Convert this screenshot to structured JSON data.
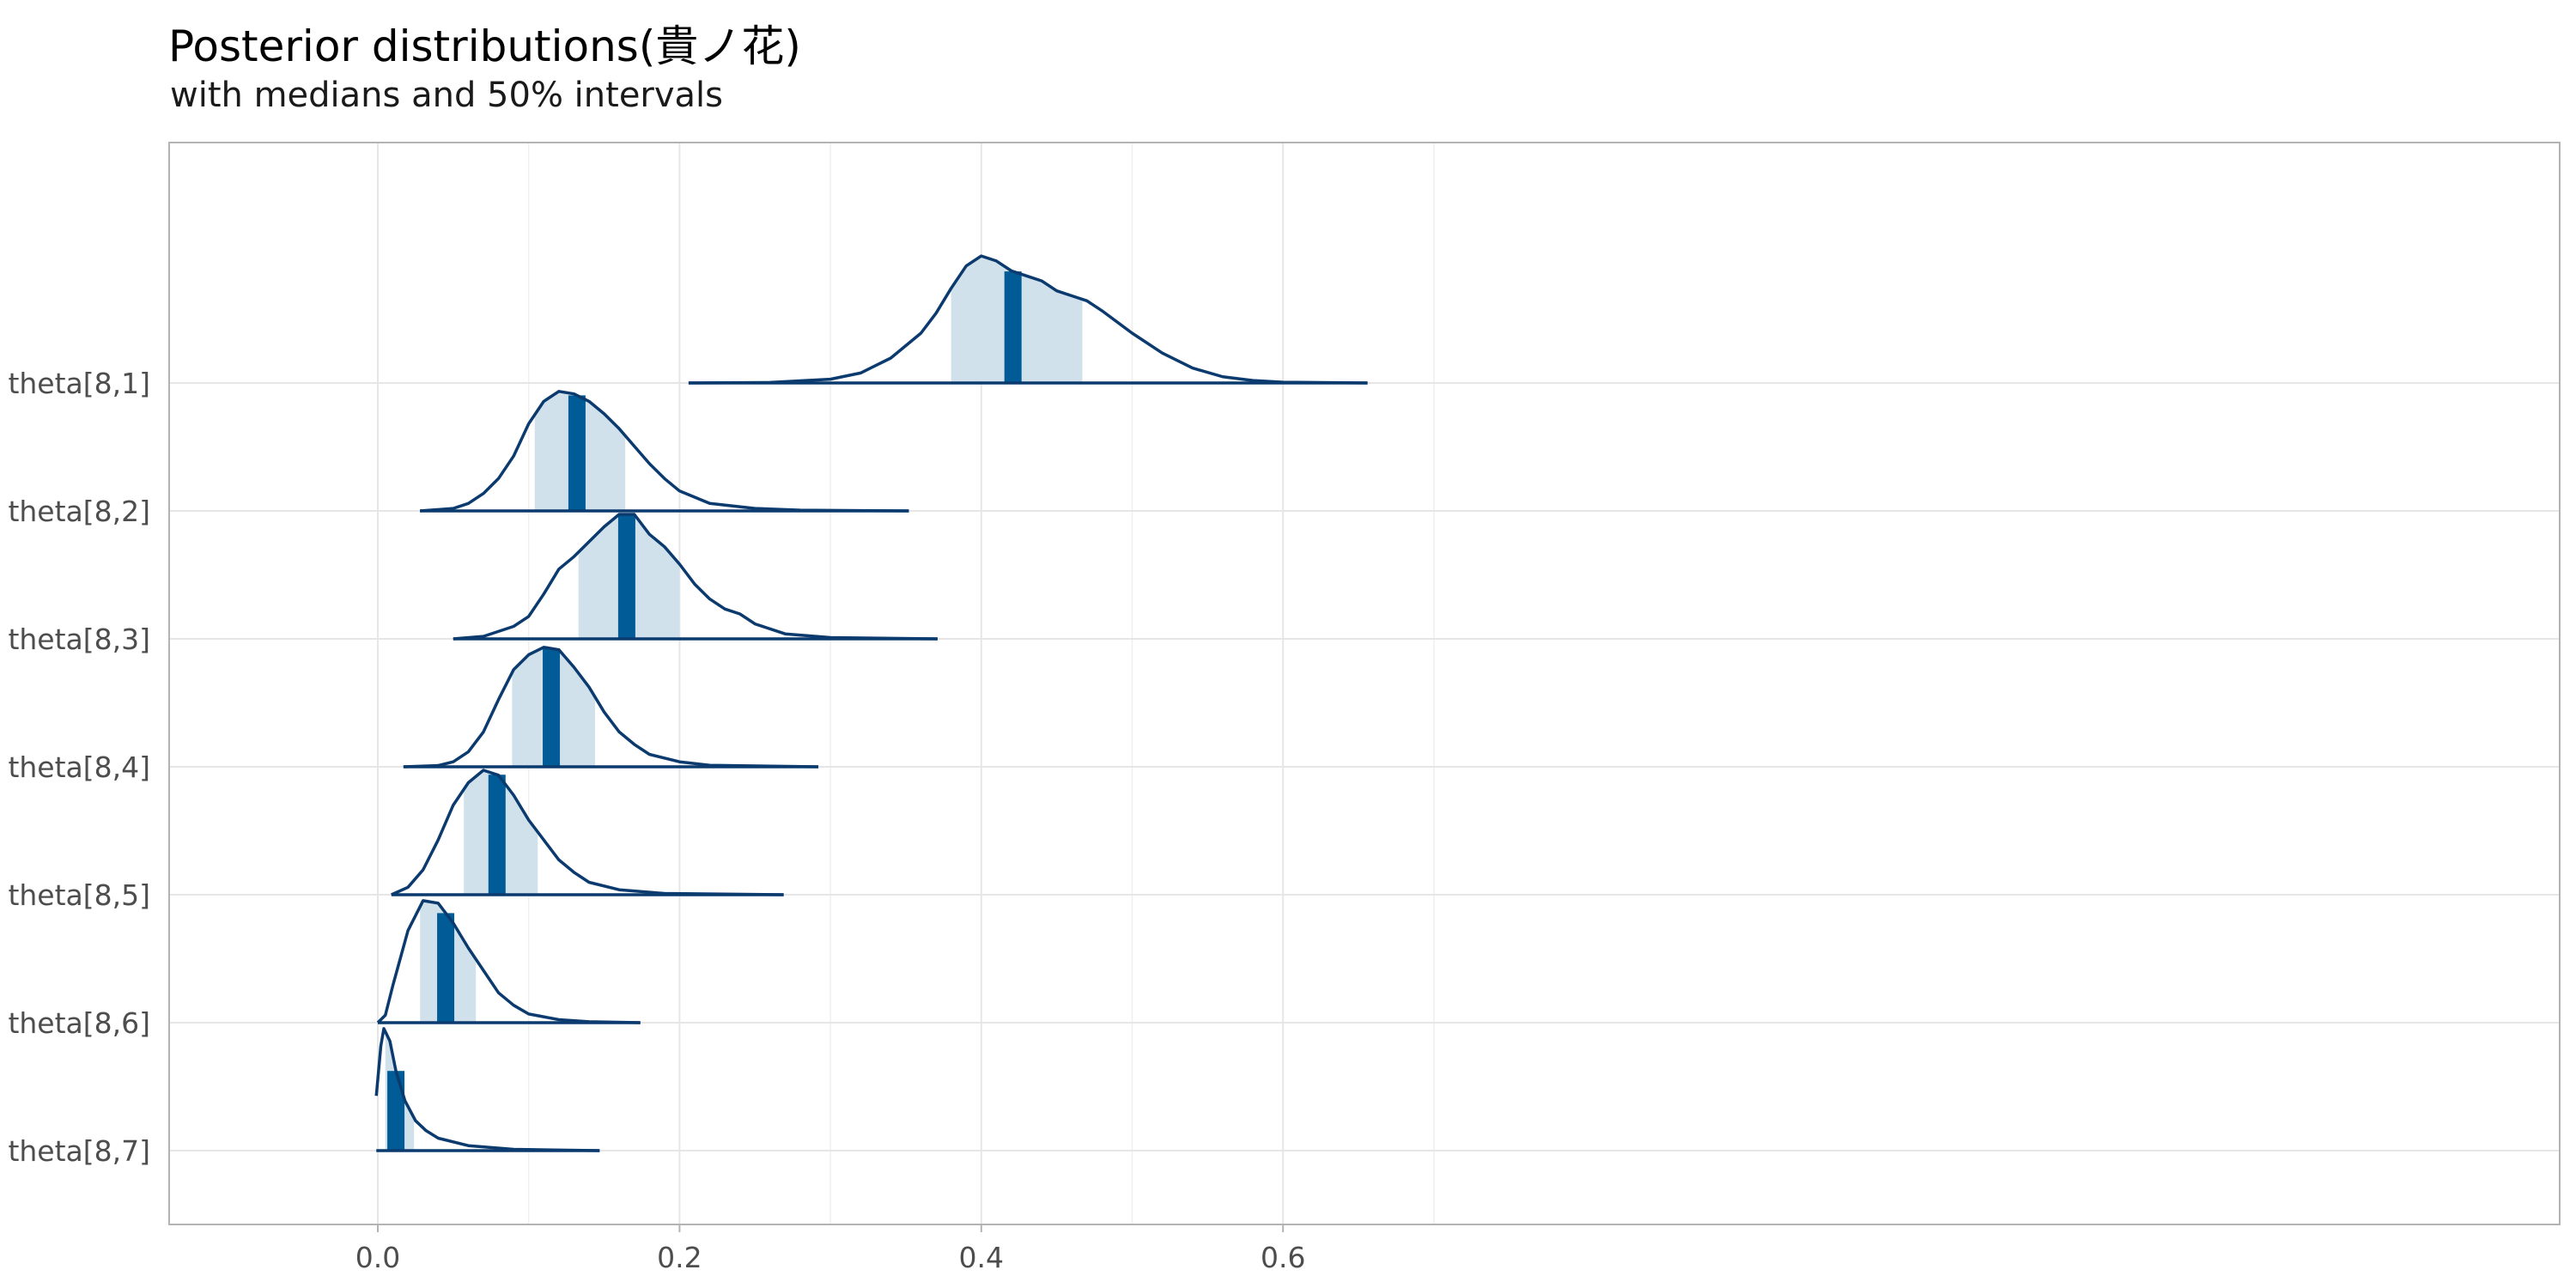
{
  "chart_data": {
    "type": "ridgeline-density",
    "title": "Posterior distributions(貴ノ花)",
    "subtitle": "with medians and 50% intervals",
    "xlim": [
      -0.07,
      0.72
    ],
    "x_ticks": [
      "0.0",
      "0.2",
      "0.4",
      "0.6"
    ],
    "x_tick_values": [
      0.0,
      0.2,
      0.4,
      0.6
    ],
    "x_minor_gridlines": [
      0.1,
      0.3,
      0.5,
      0.7
    ],
    "grid": true,
    "colors": {
      "line": "#0b3a6e",
      "interval_fill": "#d1e1ec",
      "median": "#005b96",
      "grid": "#e6e6e6",
      "panel_border": "#b3b3b3"
    },
    "series": [
      {
        "name": "theta[8,1]",
        "median": 0.421,
        "interval50": [
          0.38,
          0.467
        ],
        "range": [
          0.206,
          0.656
        ],
        "density": [
          [
            0.206,
            0
          ],
          [
            0.26,
            0.002
          ],
          [
            0.3,
            0.015
          ],
          [
            0.32,
            0.04
          ],
          [
            0.34,
            0.1
          ],
          [
            0.36,
            0.2
          ],
          [
            0.37,
            0.28
          ],
          [
            0.38,
            0.38
          ],
          [
            0.39,
            0.47
          ],
          [
            0.4,
            0.51
          ],
          [
            0.41,
            0.49
          ],
          [
            0.42,
            0.45
          ],
          [
            0.43,
            0.43
          ],
          [
            0.44,
            0.41
          ],
          [
            0.45,
            0.37
          ],
          [
            0.46,
            0.35
          ],
          [
            0.47,
            0.33
          ],
          [
            0.48,
            0.29
          ],
          [
            0.5,
            0.2
          ],
          [
            0.52,
            0.12
          ],
          [
            0.54,
            0.06
          ],
          [
            0.56,
            0.025
          ],
          [
            0.58,
            0.01
          ],
          [
            0.6,
            0.003
          ],
          [
            0.656,
            0
          ]
        ]
      },
      {
        "name": "theta[8,2]",
        "median": 0.132,
        "interval50": [
          0.104,
          0.164
        ],
        "range": [
          0.028,
          0.352
        ],
        "density": [
          [
            0.028,
            0
          ],
          [
            0.05,
            0.01
          ],
          [
            0.06,
            0.03
          ],
          [
            0.07,
            0.07
          ],
          [
            0.08,
            0.13
          ],
          [
            0.09,
            0.22
          ],
          [
            0.1,
            0.35
          ],
          [
            0.11,
            0.44
          ],
          [
            0.12,
            0.48
          ],
          [
            0.13,
            0.47
          ],
          [
            0.14,
            0.44
          ],
          [
            0.15,
            0.39
          ],
          [
            0.16,
            0.33
          ],
          [
            0.17,
            0.26
          ],
          [
            0.18,
            0.19
          ],
          [
            0.19,
            0.13
          ],
          [
            0.2,
            0.08
          ],
          [
            0.22,
            0.03
          ],
          [
            0.25,
            0.01
          ],
          [
            0.28,
            0.003
          ],
          [
            0.352,
            0
          ]
        ]
      },
      {
        "name": "theta[8,3]",
        "median": 0.165,
        "interval50": [
          0.133,
          0.2
        ],
        "range": [
          0.05,
          0.371
        ],
        "density": [
          [
            0.05,
            0
          ],
          [
            0.07,
            0.01
          ],
          [
            0.09,
            0.05
          ],
          [
            0.1,
            0.09
          ],
          [
            0.11,
            0.18
          ],
          [
            0.12,
            0.28
          ],
          [
            0.13,
            0.33
          ],
          [
            0.14,
            0.39
          ],
          [
            0.15,
            0.45
          ],
          [
            0.16,
            0.5
          ],
          [
            0.17,
            0.5
          ],
          [
            0.18,
            0.42
          ],
          [
            0.19,
            0.37
          ],
          [
            0.2,
            0.3
          ],
          [
            0.21,
            0.22
          ],
          [
            0.22,
            0.16
          ],
          [
            0.23,
            0.12
          ],
          [
            0.24,
            0.1
          ],
          [
            0.25,
            0.06
          ],
          [
            0.27,
            0.02
          ],
          [
            0.3,
            0.005
          ],
          [
            0.371,
            0
          ]
        ]
      },
      {
        "name": "theta[8,4]",
        "median": 0.115,
        "interval50": [
          0.089,
          0.144
        ],
        "range": [
          0.017,
          0.292
        ],
        "density": [
          [
            0.017,
            0
          ],
          [
            0.04,
            0.005
          ],
          [
            0.05,
            0.02
          ],
          [
            0.06,
            0.06
          ],
          [
            0.07,
            0.14
          ],
          [
            0.08,
            0.27
          ],
          [
            0.09,
            0.39
          ],
          [
            0.1,
            0.45
          ],
          [
            0.11,
            0.48
          ],
          [
            0.12,
            0.47
          ],
          [
            0.13,
            0.4
          ],
          [
            0.14,
            0.32
          ],
          [
            0.15,
            0.22
          ],
          [
            0.16,
            0.14
          ],
          [
            0.17,
            0.09
          ],
          [
            0.18,
            0.05
          ],
          [
            0.2,
            0.02
          ],
          [
            0.22,
            0.006
          ],
          [
            0.292,
            0
          ]
        ]
      },
      {
        "name": "theta[8,5]",
        "median": 0.079,
        "interval50": [
          0.057,
          0.106
        ],
        "range": [
          0.009,
          0.269
        ],
        "density": [
          [
            0.009,
            0
          ],
          [
            0.02,
            0.03
          ],
          [
            0.03,
            0.1
          ],
          [
            0.04,
            0.22
          ],
          [
            0.05,
            0.36
          ],
          [
            0.06,
            0.45
          ],
          [
            0.07,
            0.5
          ],
          [
            0.08,
            0.48
          ],
          [
            0.09,
            0.4
          ],
          [
            0.1,
            0.3
          ],
          [
            0.11,
            0.22
          ],
          [
            0.12,
            0.14
          ],
          [
            0.13,
            0.09
          ],
          [
            0.14,
            0.05
          ],
          [
            0.16,
            0.02
          ],
          [
            0.19,
            0.005
          ],
          [
            0.269,
            0
          ]
        ]
      },
      {
        "name": "theta[8,6]",
        "median": 0.045,
        "interval50": [
          0.028,
          0.065
        ],
        "range": [
          0.0,
          0.174
        ],
        "density": [
          [
            0.0,
            0
          ],
          [
            0.005,
            0.03
          ],
          [
            0.01,
            0.15
          ],
          [
            0.02,
            0.37
          ],
          [
            0.03,
            0.49
          ],
          [
            0.04,
            0.48
          ],
          [
            0.05,
            0.4
          ],
          [
            0.06,
            0.3
          ],
          [
            0.07,
            0.21
          ],
          [
            0.08,
            0.12
          ],
          [
            0.09,
            0.07
          ],
          [
            0.1,
            0.035
          ],
          [
            0.12,
            0.012
          ],
          [
            0.14,
            0.004
          ],
          [
            0.174,
            0
          ]
        ]
      },
      {
        "name": "theta[8,7]",
        "median": 0.012,
        "interval50": [
          0.005,
          0.024
        ],
        "range": [
          -0.001,
          0.147
        ],
        "density": [
          [
            -0.001,
            0.22
          ],
          [
            0.002,
            0.42
          ],
          [
            0.004,
            0.49
          ],
          [
            0.008,
            0.44
          ],
          [
            0.012,
            0.32
          ],
          [
            0.018,
            0.2
          ],
          [
            0.025,
            0.12
          ],
          [
            0.032,
            0.08
          ],
          [
            0.04,
            0.05
          ],
          [
            0.06,
            0.02
          ],
          [
            0.09,
            0.005
          ],
          [
            0.147,
            0
          ]
        ]
      }
    ]
  }
}
